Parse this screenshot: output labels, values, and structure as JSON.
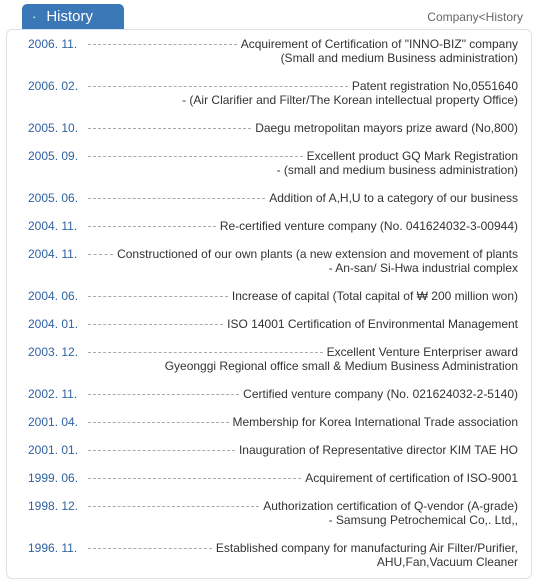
{
  "header": {
    "tab": "History",
    "breadcrumb": "Company<History"
  },
  "entries": [
    {
      "date": "2006. 11.",
      "lines": [
        "Acquirement of Certification of \"INNO-BIZ\" company",
        "(Small and medium Business administration)"
      ]
    },
    {
      "date": "2006. 02.",
      "lines": [
        "Patent registration No,0551640",
        "- (Air Clarifier and Filter/The Korean intellectual property Office)"
      ]
    },
    {
      "date": "2005. 10.",
      "lines": [
        "Daegu metropolitan mayors prize award (No,800)"
      ]
    },
    {
      "date": "2005. 09.",
      "lines": [
        "Excellent product GQ Mark Registration",
        "- (small and medium business administration)"
      ]
    },
    {
      "date": "2005. 06.",
      "lines": [
        "Addition of A,H,U to a category of our business"
      ]
    },
    {
      "date": "2004. 11.",
      "lines": [
        "Re-certified venture company (No. 041624032-3-00944)"
      ]
    },
    {
      "date": "2004. 11.",
      "lines": [
        "Constructioned of our own plants (a new extension and movement of plants",
        "- An-san/ Si-Hwa industrial complex"
      ]
    },
    {
      "date": "2004. 06.",
      "lines": [
        "Increase of capital (Total capital of ₩ 200 million won)"
      ]
    },
    {
      "date": "2004. 01.",
      "lines": [
        "ISO 14001 Certification of Environmental Management"
      ]
    },
    {
      "date": "2003. 12.",
      "lines": [
        "Excellent Venture Enterpriser award",
        "Gyeonggi Regional office small & Medium Business Administration"
      ]
    },
    {
      "date": "2002. 11.",
      "lines": [
        "Certified venture company (No. 021624032-2-5140)"
      ]
    },
    {
      "date": "2001. 04.",
      "lines": [
        "Membership for Korea International Trade association"
      ]
    },
    {
      "date": "2001. 01.",
      "lines": [
        "Inauguration of Representative director KIM TAE HO"
      ]
    },
    {
      "date": "1999. 06.",
      "lines": [
        "Acquirement of certification of ISO-9001"
      ]
    },
    {
      "date": "1998. 12.",
      "lines": [
        "Authorization certification of Q-vendor (A-grade)",
        "- Samsung Petrochemical Co,. Ltd,,"
      ]
    },
    {
      "date": "1996. 11.",
      "lines": [
        "Established company for manufacturing Air Filter/Purifier,",
        "AHU,Fan,Vacuum Cleaner"
      ]
    }
  ]
}
